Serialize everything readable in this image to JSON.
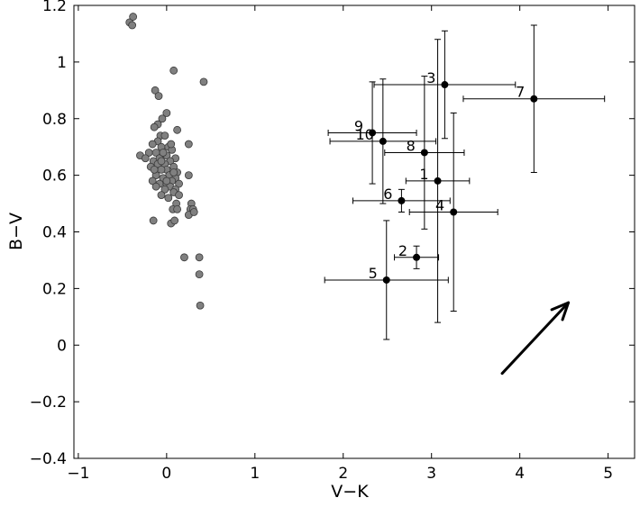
{
  "chart_data": {
    "type": "scatter",
    "xlabel": "V−K",
    "ylabel": "B−V",
    "xlim": [
      -1.05,
      5.3
    ],
    "ylim": [
      -0.4,
      1.2
    ],
    "xticks": [
      "−1",
      "0",
      "1",
      "2",
      "3",
      "4",
      "5"
    ],
    "xtick_values": [
      -1,
      0,
      1,
      2,
      3,
      4,
      5
    ],
    "yticks": [
      "−0.4",
      "−0.2",
      "0",
      "0.2",
      "0.4",
      "0.6",
      "0.8",
      "1",
      "1.2"
    ],
    "ytick_values": [
      -0.4,
      -0.2,
      0,
      0.2,
      0.4,
      0.6,
      0.8,
      1.0,
      1.2
    ],
    "grid": false,
    "background_stars": {
      "color": "#808080",
      "points": [
        [
          -0.42,
          1.14
        ],
        [
          -0.38,
          1.16
        ],
        [
          -0.39,
          1.13
        ],
        [
          0.08,
          0.97
        ],
        [
          0.42,
          0.93
        ],
        [
          -0.13,
          0.9
        ],
        [
          -0.09,
          0.88
        ],
        [
          0.0,
          0.82
        ],
        [
          -0.05,
          0.8
        ],
        [
          -0.1,
          0.78
        ],
        [
          -0.14,
          0.77
        ],
        [
          0.12,
          0.76
        ],
        [
          -0.07,
          0.74
        ],
        [
          -0.02,
          0.74
        ],
        [
          -0.1,
          0.72
        ],
        [
          0.25,
          0.71
        ],
        [
          -0.16,
          0.71
        ],
        [
          -0.06,
          0.7
        ],
        [
          0.02,
          0.7
        ],
        [
          0.06,
          0.69
        ],
        [
          -0.2,
          0.68
        ],
        [
          -0.12,
          0.68
        ],
        [
          0.0,
          0.67
        ],
        [
          -0.3,
          0.67
        ],
        [
          -0.24,
          0.66
        ],
        [
          0.1,
          0.66
        ],
        [
          -0.08,
          0.66
        ],
        [
          -0.15,
          0.65
        ],
        [
          0.04,
          0.65
        ],
        [
          -0.02,
          0.64
        ],
        [
          -0.1,
          0.64
        ],
        [
          0.08,
          0.63
        ],
        [
          -0.18,
          0.63
        ],
        [
          0.0,
          0.62
        ],
        [
          -0.06,
          0.62
        ],
        [
          0.12,
          0.61
        ],
        [
          0.25,
          0.6
        ],
        [
          -0.12,
          0.6
        ],
        [
          0.03,
          0.6
        ],
        [
          -0.04,
          0.59
        ],
        [
          0.1,
          0.59
        ],
        [
          -0.16,
          0.58
        ],
        [
          0.06,
          0.58
        ],
        [
          -0.08,
          0.57
        ],
        [
          0.0,
          0.57
        ],
        [
          0.14,
          0.57
        ],
        [
          -0.12,
          0.56
        ],
        [
          0.04,
          0.56
        ],
        [
          0.1,
          0.55
        ],
        [
          -0.02,
          0.55
        ],
        [
          0.08,
          0.54
        ],
        [
          0.14,
          0.53
        ],
        [
          -0.06,
          0.53
        ],
        [
          0.02,
          0.52
        ],
        [
          0.11,
          0.5
        ],
        [
          0.28,
          0.5
        ],
        [
          0.27,
          0.48
        ],
        [
          0.3,
          0.48
        ],
        [
          0.07,
          0.48
        ],
        [
          0.12,
          0.48
        ],
        [
          0.25,
          0.46
        ],
        [
          0.31,
          0.47
        ],
        [
          -0.15,
          0.44
        ],
        [
          0.05,
          0.43
        ],
        [
          0.09,
          0.44
        ],
        [
          0.2,
          0.31
        ],
        [
          0.37,
          0.31
        ],
        [
          0.37,
          0.25
        ],
        [
          0.38,
          0.14
        ],
        [
          -0.06,
          0.65
        ],
        [
          0.05,
          0.71
        ],
        [
          -0.14,
          0.62
        ],
        [
          0.0,
          0.58
        ],
        [
          0.08,
          0.61
        ],
        [
          -0.04,
          0.68
        ]
      ]
    },
    "labeled_points": [
      {
        "label": "1",
        "x": 3.07,
        "y": 0.58,
        "xerr": 0.36,
        "yerr": 0.5
      },
      {
        "label": "2",
        "x": 2.83,
        "y": 0.31,
        "xerr": 0.25,
        "yerr": 0.04
      },
      {
        "label": "3",
        "x": 3.15,
        "y": 0.92,
        "xerr": 0.8,
        "yerr": 0.19
      },
      {
        "label": "4",
        "x": 3.25,
        "y": 0.47,
        "xerr": 0.5,
        "yerr": 0.35
      },
      {
        "label": "5",
        "x": 2.49,
        "y": 0.23,
        "xerr": 0.7,
        "yerr": 0.21
      },
      {
        "label": "6",
        "x": 2.66,
        "y": 0.51,
        "xerr": 0.55,
        "yerr": 0.04
      },
      {
        "label": "7",
        "x": 4.16,
        "y": 0.87,
        "xerr": 0.8,
        "yerr": 0.26
      },
      {
        "label": "8",
        "x": 2.92,
        "y": 0.68,
        "xerr": 0.45,
        "yerr": 0.27
      },
      {
        "label": "9",
        "x": 2.33,
        "y": 0.75,
        "xerr": 0.5,
        "yerr": 0.18
      },
      {
        "label": "10",
        "x": 2.45,
        "y": 0.72,
        "xerr": 0.6,
        "yerr": 0.22
      }
    ],
    "arrow": {
      "from": [
        3.8,
        -0.1
      ],
      "to": [
        4.55,
        0.15
      ]
    }
  }
}
